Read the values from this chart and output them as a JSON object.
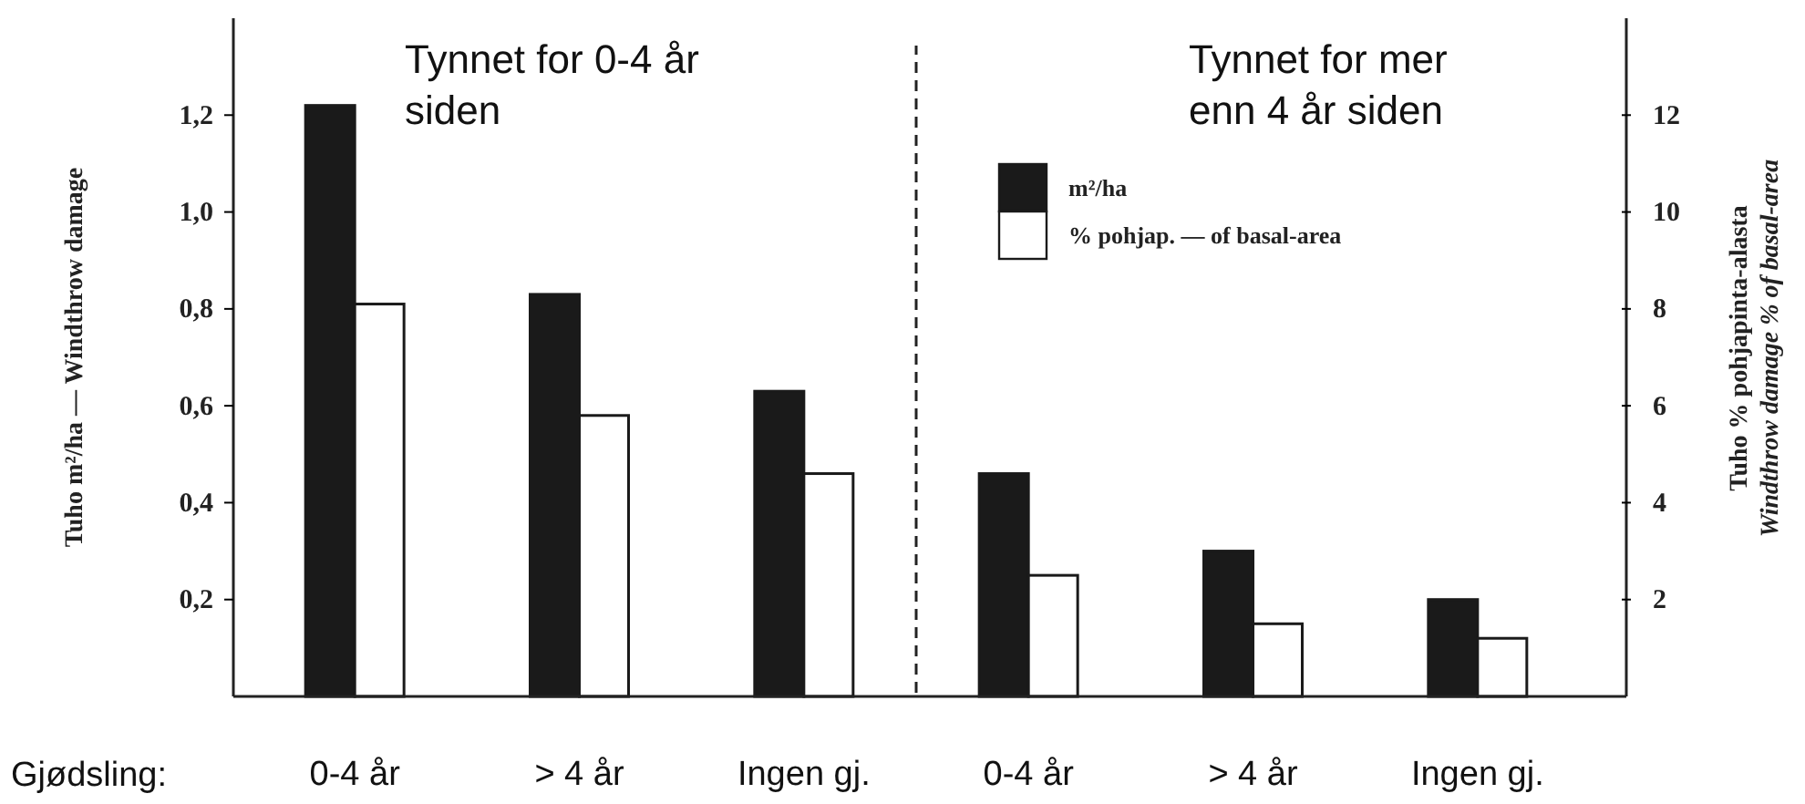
{
  "chart_data": {
    "type": "bar",
    "categories": [
      "0-4 år",
      "> 4 år",
      "Ingen gj.",
      "0-4 år",
      "> 4 år",
      "Ingen gj."
    ],
    "xlabel": "Gjødsling:",
    "ylabel": "Tuho m²/ha — Windthrow damage",
    "y2label": "Tuho % pohjapinta-alasta\nWindthrow damage % of basal-area",
    "series": [
      {
        "name": "m²/ha",
        "color": "#1a1a1a",
        "values": [
          1.22,
          0.83,
          0.63,
          0.46,
          0.3,
          0.2
        ]
      },
      {
        "name": "% pohjap. — of basal-area",
        "color": "#ffffff",
        "axis": "y2",
        "values": [
          8.1,
          5.8,
          4.6,
          2.5,
          1.5,
          1.2
        ]
      }
    ],
    "ylim": [
      0,
      1.4
    ],
    "yticks": [
      {
        "value": 0.2,
        "label": "0,2"
      },
      {
        "value": 0.4,
        "label": "0,4"
      },
      {
        "value": 0.6,
        "label": "0,6"
      },
      {
        "value": 0.8,
        "label": "0,8"
      },
      {
        "value": 1.0,
        "label": "1,0"
      },
      {
        "value": 1.2,
        "label": "1,2"
      }
    ],
    "y2lim": [
      0,
      14
    ],
    "y2ticks": [
      2,
      4,
      6,
      8,
      10,
      12
    ],
    "annotations": [
      "Tynnet for 0-4 år\nsiden",
      "Tynnet for mer\nenn 4 år siden"
    ],
    "legend": "top right",
    "grid": false
  }
}
